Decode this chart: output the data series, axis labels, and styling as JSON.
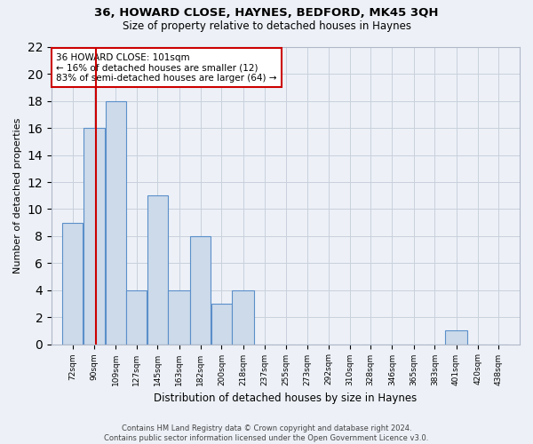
{
  "title1": "36, HOWARD CLOSE, HAYNES, BEDFORD, MK45 3QH",
  "title2": "Size of property relative to detached houses in Haynes",
  "xlabel": "Distribution of detached houses by size in Haynes",
  "ylabel": "Number of detached properties",
  "bin_labels": [
    "72sqm",
    "90sqm",
    "109sqm",
    "127sqm",
    "145sqm",
    "163sqm",
    "182sqm",
    "200sqm",
    "218sqm",
    "237sqm",
    "255sqm",
    "273sqm",
    "292sqm",
    "310sqm",
    "328sqm",
    "346sqm",
    "365sqm",
    "383sqm",
    "401sqm",
    "420sqm",
    "438sqm"
  ],
  "bin_edges": [
    72,
    90,
    109,
    127,
    145,
    163,
    182,
    200,
    218,
    237,
    255,
    273,
    292,
    310,
    328,
    346,
    365,
    383,
    401,
    420,
    438,
    456
  ],
  "counts": [
    9,
    16,
    18,
    4,
    11,
    4,
    8,
    3,
    4,
    0,
    0,
    0,
    0,
    0,
    0,
    0,
    0,
    0,
    1,
    0,
    0
  ],
  "property_size": 101,
  "bar_color": "#ccdaea",
  "bar_edge_color": "#5b8fc9",
  "vline_color": "#cc0000",
  "annotation_line1": "36 HOWARD CLOSE: 101sqm",
  "annotation_line2": "← 16% of detached houses are smaller (12)",
  "annotation_line3": "83% of semi-detached houses are larger (64) →",
  "annotation_box_color": "white",
  "annotation_box_edge": "#cc0000",
  "ylim": [
    0,
    22
  ],
  "yticks": [
    0,
    2,
    4,
    6,
    8,
    10,
    12,
    14,
    16,
    18,
    20,
    22
  ],
  "grid_color": "#c8d0dc",
  "bg_color": "#edf1f7",
  "footnote": "Contains HM Land Registry data © Crown copyright and database right 2024.\nContains public sector information licensed under the Open Government Licence v3.0."
}
